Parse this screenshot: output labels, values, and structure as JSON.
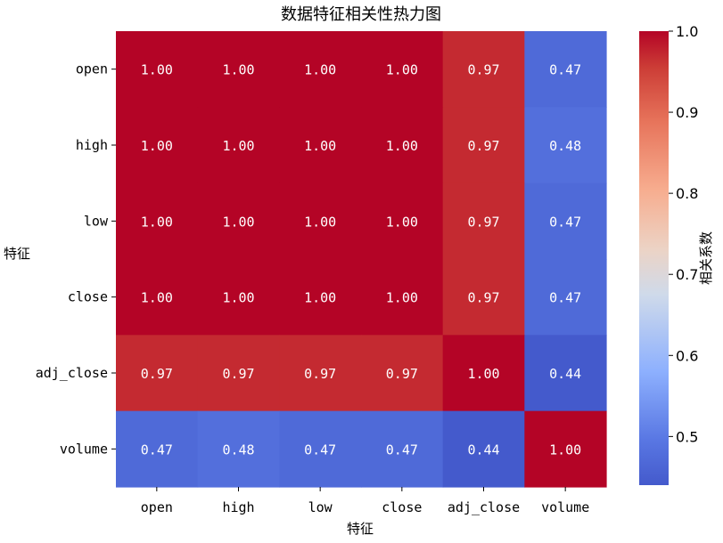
{
  "chart_data": {
    "type": "heatmap",
    "title": "数据特征相关性热力图",
    "xlabel": "特征",
    "ylabel": "特征",
    "x_categories": [
      "open",
      "high",
      "low",
      "close",
      "adj_close",
      "volume"
    ],
    "y_categories": [
      "open",
      "high",
      "low",
      "close",
      "adj_close",
      "volume"
    ],
    "values": [
      [
        1.0,
        1.0,
        1.0,
        1.0,
        0.97,
        0.47
      ],
      [
        1.0,
        1.0,
        1.0,
        1.0,
        0.97,
        0.48
      ],
      [
        1.0,
        1.0,
        1.0,
        1.0,
        0.97,
        0.47
      ],
      [
        1.0,
        1.0,
        1.0,
        1.0,
        0.97,
        0.47
      ],
      [
        0.97,
        0.97,
        0.97,
        0.97,
        1.0,
        0.44
      ],
      [
        0.47,
        0.48,
        0.47,
        0.47,
        0.44,
        1.0
      ]
    ],
    "value_format": "0.00",
    "colormap": "coolwarm",
    "colorbar": {
      "label": "相关系数",
      "range": [
        0.44,
        1.0
      ],
      "ticks": [
        "0.5",
        "0.6",
        "0.7",
        "0.8",
        "0.9",
        "1.0"
      ]
    },
    "grid": false,
    "legend": "none"
  }
}
